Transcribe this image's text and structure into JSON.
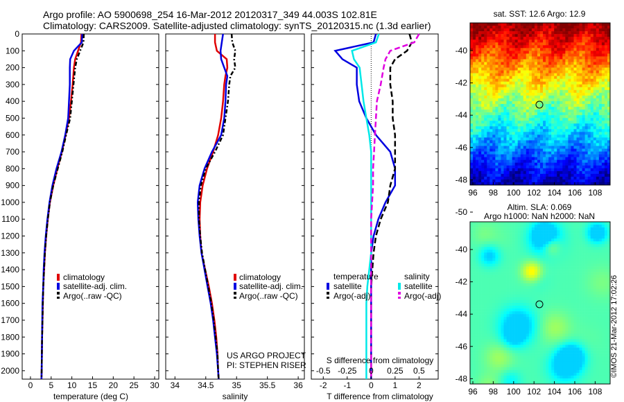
{
  "header": {
    "line1": "Argo profile: AO 5900698_254 16-Mar-2012 20120317_349 44.003S 102.81E",
    "line2": "Climatology: CARS2009. Satellite-adjusted climatology: synTS_20120315.nc (1.3d earlier)"
  },
  "depth_ticks": [
    "0",
    "100",
    "200",
    "300",
    "400",
    "500",
    "600",
    "700",
    "800",
    "900",
    "1000",
    "1100",
    "1200",
    "1300",
    "1400",
    "1500",
    "1600",
    "1700",
    "1800",
    "1900",
    "2000"
  ],
  "panel1": {
    "xlabel": "temperature (deg C)",
    "xticks": [
      "0",
      "5",
      "10",
      "15",
      "20",
      "25",
      "30"
    ],
    "legend": [
      "climatology",
      "satellite-adj. clim.",
      "Argo(..raw -QC)"
    ]
  },
  "panel2": {
    "xlabel": "salinity",
    "xticks": [
      "34",
      "34.5",
      "35",
      "35.5",
      "36"
    ],
    "legend": [
      "climatology",
      "satellite-adj. clim.",
      "Argo(..raw -QC)"
    ],
    "credit1": "US ARGO PROJECT",
    "credit2": "PI: STEPHEN RISER"
  },
  "panel3": {
    "xlabel": "T difference from climatology",
    "xticks": [
      "-2",
      "-1",
      "0",
      "1",
      "2"
    ],
    "top_label": "S difference from climatology",
    "top_ticks": [
      "-0.5",
      "-0.25",
      "0",
      "0.25",
      "0.5"
    ],
    "legend_temp_title": "temperature",
    "legend_sal_title": "salinity",
    "legend_temp": [
      "satellite",
      "Argo(-adj)"
    ],
    "legend_sal": [
      "satellite",
      "Argo(-adj)"
    ]
  },
  "map1": {
    "title": "sat. SST: 12.6 Argo: 12.9",
    "yticks": [
      "-40",
      "-42",
      "-44",
      "-46",
      "-48",
      "-50"
    ],
    "xticks": [
      "96",
      "98",
      "100",
      "102",
      "104",
      "106",
      "108"
    ]
  },
  "map2": {
    "title1": "Altim. SLA: 0.069",
    "title2": "Argo h1000: NaN h2000: NaN",
    "yticks": [
      "-40",
      "-42",
      "-44",
      "-46",
      "-48",
      "-50"
    ],
    "xticks": [
      "96",
      "98",
      "100",
      "102",
      "104",
      "106",
      "108"
    ],
    "stamp": "©IMOS 21-Mar-2012 17:02:26"
  },
  "colors": {
    "climatology": "#e00000",
    "satellite": "#0000e0",
    "argo": "#000000",
    "sal_satellite": "#00e8e8",
    "sal_argo": "#e000e0"
  },
  "chart_data": [
    {
      "type": "line",
      "xlabel": "temperature (deg C)",
      "ylabel": "",
      "xlim": [
        -2,
        31
      ],
      "ylim": [
        2050,
        0
      ],
      "x": [
        0,
        50,
        100,
        150,
        200,
        300,
        400,
        500,
        600,
        700,
        800,
        900,
        1000,
        1100,
        1200,
        1300,
        1400,
        1500,
        1600,
        1700,
        1800,
        1900,
        2000,
        2050
      ],
      "series": [
        {
          "name": "climatology",
          "values": [
            12.3,
            12.2,
            11.5,
            10.8,
            10.5,
            10.2,
            9.8,
            9.3,
            8.5,
            7.6,
            6.5,
            5.5,
            4.7,
            4.2,
            3.8,
            3.5,
            3.3,
            3.1,
            3.0,
            2.9,
            2.8,
            2.75,
            2.7,
            2.65
          ]
        },
        {
          "name": "satellite-adj. clim.",
          "values": [
            12.5,
            12.4,
            10.5,
            9.6,
            9.5,
            9.5,
            9.3,
            9.1,
            8.4,
            7.5,
            6.3,
            5.3,
            4.6,
            4.1,
            3.7,
            3.4,
            3.2,
            3.1,
            2.9,
            2.85,
            2.8,
            2.75,
            2.7,
            2.65
          ]
        },
        {
          "name": "Argo(..raw -QC)",
          "values": [
            12.9,
            12.8,
            12.0,
            11.2,
            10.8,
            10.4,
            10.0,
            9.6,
            8.6,
            7.7,
            6.6,
            5.5,
            4.7,
            4.2,
            3.8,
            3.5,
            3.3,
            3.1,
            3.0,
            2.9,
            2.8,
            2.75,
            2.7,
            2.65
          ]
        }
      ]
    },
    {
      "type": "line",
      "xlabel": "salinity",
      "ylabel": "",
      "xlim": [
        33.85,
        36.1
      ],
      "ylim": [
        2050,
        0
      ],
      "x": [
        0,
        50,
        100,
        150,
        200,
        250,
        300,
        400,
        500,
        600,
        700,
        800,
        900,
        1000,
        1100,
        1200,
        1300,
        1400,
        1500,
        1600,
        1700,
        1800,
        1900,
        2000,
        2050
      ],
      "series": [
        {
          "name": "climatology",
          "values": [
            34.65,
            34.65,
            34.68,
            34.84,
            34.85,
            34.82,
            34.8,
            34.78,
            34.75,
            34.7,
            34.62,
            34.52,
            34.45,
            34.41,
            34.4,
            34.41,
            34.43,
            34.49,
            34.55,
            34.6,
            34.64,
            34.67,
            34.69,
            34.7,
            34.71
          ]
        },
        {
          "name": "satellite-adj. clim.",
          "values": [
            34.78,
            34.76,
            34.74,
            34.75,
            34.8,
            34.85,
            34.83,
            34.82,
            34.8,
            34.75,
            34.6,
            34.48,
            34.4,
            34.37,
            34.38,
            34.4,
            34.43,
            34.48,
            34.53,
            34.58,
            34.62,
            34.65,
            34.68,
            34.7,
            34.71
          ]
        },
        {
          "name": "Argo(..raw -QC)",
          "values": [
            34.92,
            34.93,
            34.98,
            34.96,
            34.98,
            34.9,
            34.88,
            34.86,
            34.82,
            34.78,
            34.65,
            34.5,
            34.42,
            34.39,
            34.39,
            34.41,
            34.44,
            34.49,
            34.54,
            34.59,
            34.63,
            34.66,
            34.69,
            34.7,
            34.71
          ]
        }
      ]
    },
    {
      "type": "line",
      "xlabel": "T difference from climatology",
      "ylabel": "",
      "xlim": [
        -2.5,
        2.8
      ],
      "ylim": [
        2050,
        0
      ],
      "x": [
        0,
        50,
        100,
        150,
        200,
        300,
        400,
        500,
        600,
        700,
        800,
        900,
        1000,
        1100,
        1200,
        1300,
        1400,
        1500,
        1600,
        1700,
        1800,
        1900,
        2000,
        2050
      ],
      "series": [
        {
          "name": "temperature satellite",
          "values": [
            0.2,
            0.1,
            -1.5,
            -1.2,
            -0.6,
            -0.6,
            -0.5,
            -0.2,
            0.2,
            0.8,
            1.0,
            1.0,
            0.6,
            0.3,
            0.1,
            0.0,
            0.0,
            0.0,
            0.0,
            0.0,
            0.0,
            0.0,
            0.0,
            0.0
          ]
        },
        {
          "name": "temperature Argo(-adj)",
          "values": [
            1.6,
            1.7,
            1.5,
            1.0,
            0.8,
            0.8,
            0.9,
            0.9,
            1.0,
            1.0,
            1.0,
            0.8,
            0.7,
            0.4,
            0.2,
            0.1,
            0.05,
            0.0,
            0.0,
            0.0,
            0.0,
            0.0,
            0.0,
            0.0
          ]
        },
        {
          "name": "salinity satellite",
          "values": [
            0.08,
            0.05,
            -0.2,
            -0.18,
            -0.12,
            -0.1,
            -0.08,
            -0.05,
            -0.02,
            0.0,
            0.0,
            0.0,
            0.0,
            0.0,
            0.0,
            0.0,
            -0.02,
            -0.04,
            -0.05,
            -0.05,
            -0.05,
            -0.05,
            -0.05,
            -0.05
          ]
        },
        {
          "name": "salinity Argo(-adj)",
          "values": [
            0.5,
            0.45,
            0.2,
            0.15,
            0.13,
            0.1,
            0.06,
            0.05,
            0.04,
            0.03,
            0.02,
            0.02,
            0.01,
            0.0,
            0.0,
            0.0,
            0.0,
            0.0,
            0.0,
            0.0,
            0.0,
            0.0,
            0.0,
            0.0
          ]
        }
      ]
    }
  ]
}
